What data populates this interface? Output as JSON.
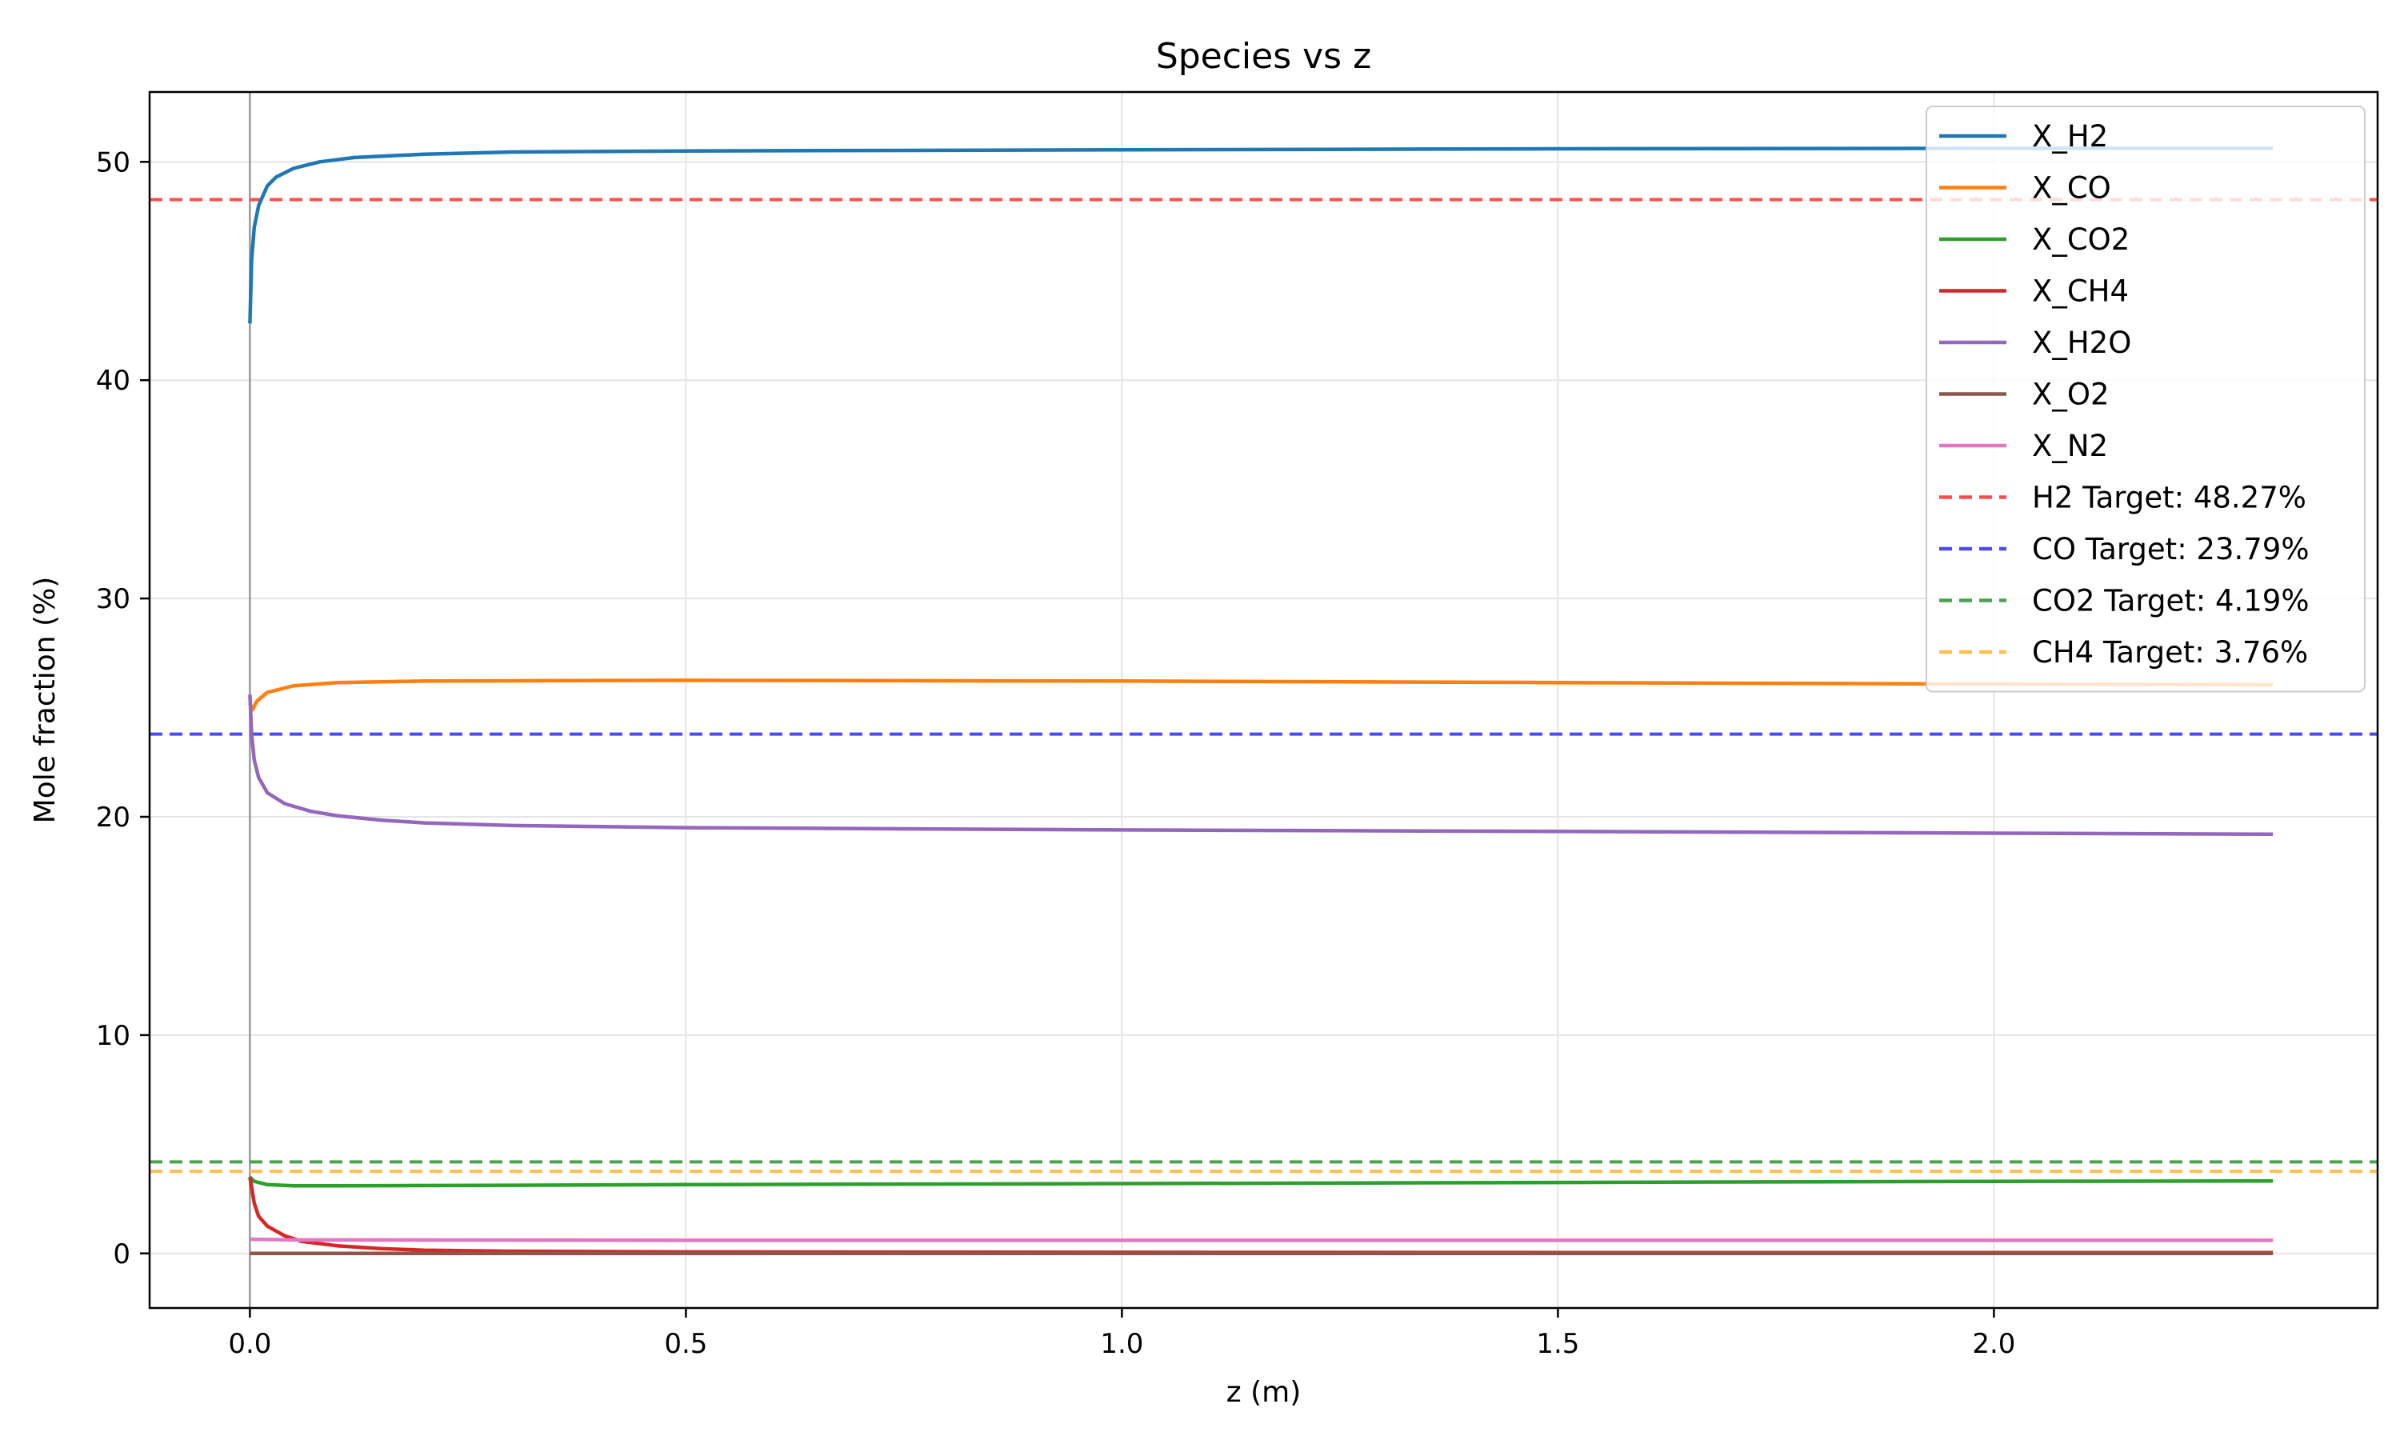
{
  "chart_data": {
    "type": "line",
    "title": "Species vs z",
    "xlabel": "z (m)",
    "ylabel": "Mole fraction (%)",
    "xlim": [
      -0.115,
      2.44
    ],
    "ylim": [
      -2.5,
      53.2
    ],
    "x_ticks": [
      0.0,
      0.5,
      1.0,
      1.5,
      2.0
    ],
    "x_tick_labels": [
      "0.0",
      "0.5",
      "1.0",
      "1.5",
      "2.0"
    ],
    "y_ticks": [
      0,
      10,
      20,
      30,
      40,
      50
    ],
    "y_tick_labels": [
      "0",
      "10",
      "20",
      "30",
      "40",
      "50"
    ],
    "grid": true,
    "legend_position": "top-right",
    "vertical_marker_x": 0.0,
    "series": [
      {
        "name": "X_H2",
        "color": "#1f77b4",
        "points": [
          [
            0,
            42.6
          ],
          [
            0.002,
            45.5
          ],
          [
            0.005,
            47.0
          ],
          [
            0.01,
            48.0
          ],
          [
            0.02,
            48.9
          ],
          [
            0.03,
            49.3
          ],
          [
            0.05,
            49.7
          ],
          [
            0.08,
            50.0
          ],
          [
            0.12,
            50.2
          ],
          [
            0.2,
            50.35
          ],
          [
            0.3,
            50.45
          ],
          [
            0.5,
            50.5
          ],
          [
            1.0,
            50.55
          ],
          [
            1.5,
            50.6
          ],
          [
            2.0,
            50.62
          ],
          [
            2.32,
            50.62
          ]
        ]
      },
      {
        "name": "X_CO",
        "color": "#ff7f0e",
        "points": [
          [
            0,
            25.2
          ],
          [
            0.003,
            24.9
          ],
          [
            0.008,
            25.3
          ],
          [
            0.02,
            25.7
          ],
          [
            0.05,
            26.0
          ],
          [
            0.1,
            26.15
          ],
          [
            0.2,
            26.22
          ],
          [
            0.5,
            26.25
          ],
          [
            1.0,
            26.22
          ],
          [
            1.5,
            26.15
          ],
          [
            2.0,
            26.08
          ],
          [
            2.32,
            26.05
          ]
        ]
      },
      {
        "name": "X_CO2",
        "color": "#2ca02c",
        "points": [
          [
            0,
            3.5
          ],
          [
            0.005,
            3.3
          ],
          [
            0.02,
            3.15
          ],
          [
            0.05,
            3.1
          ],
          [
            0.1,
            3.1
          ],
          [
            0.3,
            3.12
          ],
          [
            0.5,
            3.15
          ],
          [
            1.0,
            3.2
          ],
          [
            1.5,
            3.25
          ],
          [
            2.0,
            3.3
          ],
          [
            2.32,
            3.32
          ]
        ]
      },
      {
        "name": "X_CH4",
        "color": "#d62728",
        "points": [
          [
            0,
            3.5
          ],
          [
            0.005,
            2.3
          ],
          [
            0.01,
            1.7
          ],
          [
            0.02,
            1.25
          ],
          [
            0.04,
            0.8
          ],
          [
            0.06,
            0.55
          ],
          [
            0.1,
            0.35
          ],
          [
            0.15,
            0.22
          ],
          [
            0.2,
            0.15
          ],
          [
            0.3,
            0.1
          ],
          [
            0.5,
            0.07
          ],
          [
            1.0,
            0.05
          ],
          [
            1.5,
            0.04
          ],
          [
            2.0,
            0.04
          ],
          [
            2.32,
            0.04
          ]
        ]
      },
      {
        "name": "X_H2O",
        "color": "#9467bd",
        "points": [
          [
            0,
            25.6
          ],
          [
            0.002,
            23.8
          ],
          [
            0.005,
            22.6
          ],
          [
            0.01,
            21.8
          ],
          [
            0.02,
            21.1
          ],
          [
            0.04,
            20.6
          ],
          [
            0.07,
            20.25
          ],
          [
            0.1,
            20.05
          ],
          [
            0.15,
            19.85
          ],
          [
            0.2,
            19.72
          ],
          [
            0.3,
            19.6
          ],
          [
            0.5,
            19.5
          ],
          [
            1.0,
            19.4
          ],
          [
            1.5,
            19.33
          ],
          [
            2.0,
            19.25
          ],
          [
            2.32,
            19.2
          ]
        ]
      },
      {
        "name": "X_O2",
        "color": "#8c564b",
        "points": [
          [
            0,
            0.0
          ],
          [
            0.5,
            0.0
          ],
          [
            1.0,
            0.0
          ],
          [
            1.5,
            0.0
          ],
          [
            2.0,
            0.0
          ],
          [
            2.32,
            0.0
          ]
        ]
      },
      {
        "name": "X_N2",
        "color": "#e377c2",
        "points": [
          [
            0,
            0.65
          ],
          [
            0.05,
            0.62
          ],
          [
            0.5,
            0.6
          ],
          [
            1.0,
            0.6
          ],
          [
            1.5,
            0.6
          ],
          [
            2.0,
            0.6
          ],
          [
            2.32,
            0.6
          ]
        ]
      }
    ],
    "targets": [
      {
        "name": "H2 Target: 48.27%",
        "value": 48.27,
        "color": "#ff4d4d"
      },
      {
        "name": "CO Target: 23.79%",
        "value": 23.79,
        "color": "#4c4cf0"
      },
      {
        "name": "CO2 Target: 4.19%",
        "value": 4.19,
        "color": "#4ca24c"
      },
      {
        "name": "CH4 Target: 3.76%",
        "value": 3.76,
        "color": "#ffc04d"
      }
    ]
  }
}
